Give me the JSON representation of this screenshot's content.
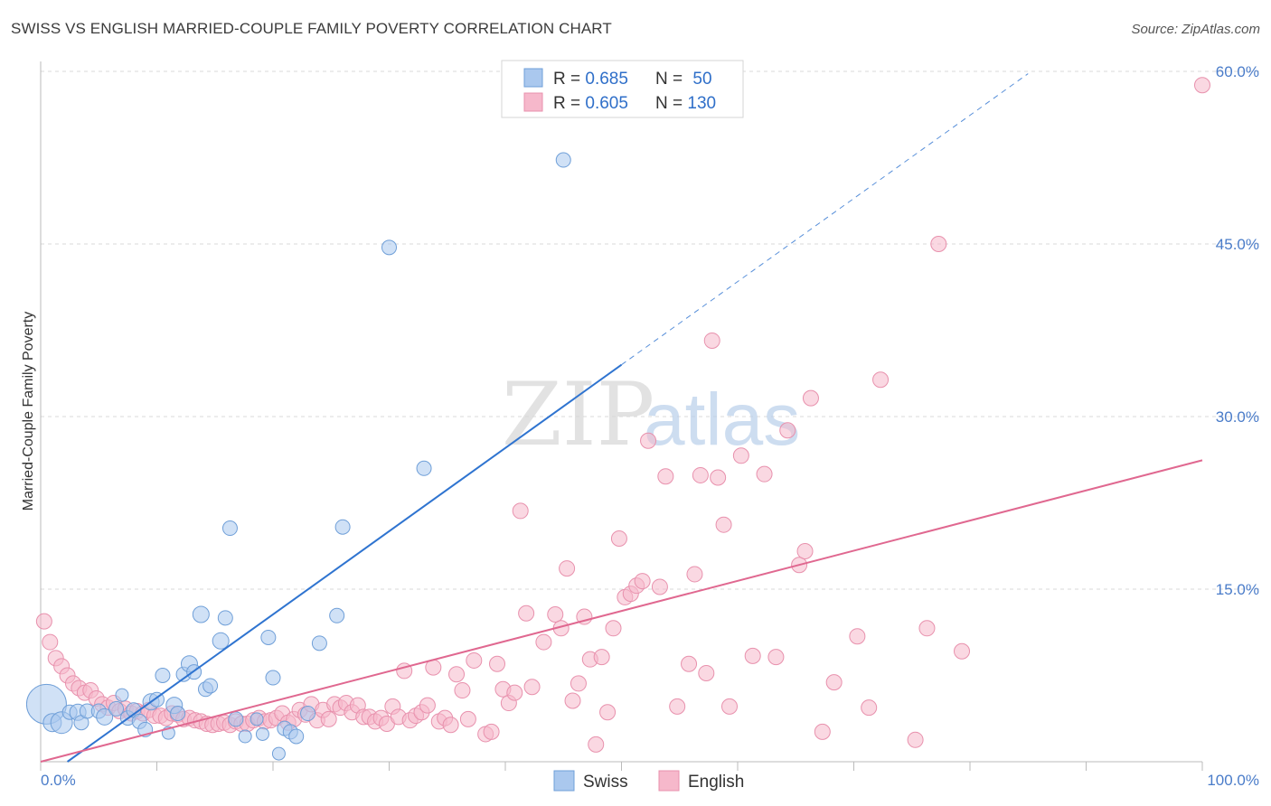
{
  "title": "SWISS VS ENGLISH MARRIED-COUPLE FAMILY POVERTY CORRELATION CHART",
  "source": "Source: ZipAtlas.com",
  "watermark": {
    "zip": "ZIP",
    "atlas": "atlas"
  },
  "colors": {
    "swiss_fill": "#aac8ee",
    "swiss_stroke": "#6f9fd8",
    "swiss_line": "#2f74d0",
    "english_fill": "#f6b8cb",
    "english_stroke": "#e891ad",
    "english_line": "#e06890",
    "tick_text": "#4a7cc9",
    "grid": "#d8d8d8"
  },
  "legend": {
    "rows": [
      {
        "r_label": "R = ",
        "r_value": "0.685",
        "n_label": "N = ",
        "n_value": "50"
      },
      {
        "r_label": "R = ",
        "r_value": "0.605",
        "n_label": "N = ",
        "n_value": "130"
      }
    ],
    "bottom": [
      "Swiss",
      "English"
    ]
  },
  "chart_data": {
    "type": "scatter",
    "title": "SWISS VS ENGLISH MARRIED-COUPLE FAMILY POVERTY CORRELATION CHART",
    "xlabel": "",
    "ylabel": "Married-Couple Family Poverty",
    "xlim": [
      0,
      100
    ],
    "ylim": [
      0,
      60
    ],
    "x_tick_labels": [
      "0.0%",
      "100.0%"
    ],
    "y_ticks": [
      15,
      30,
      45,
      60
    ],
    "y_tick_labels": [
      "15.0%",
      "30.0%",
      "45.0%",
      "60.0%"
    ],
    "grid": true,
    "legend_position": "top-center",
    "series": [
      {
        "name": "Swiss",
        "R": 0.685,
        "N": 50,
        "trend": {
          "x": [
            2.3,
            50.0
          ],
          "y": [
            0.0,
            34.5
          ],
          "dashed_to": {
            "x": 85.0,
            "y": 59.8
          }
        },
        "points": [
          [
            0.5,
            5.0,
            22
          ],
          [
            1.0,
            3.4,
            10
          ],
          [
            1.8,
            3.4,
            12
          ],
          [
            2.5,
            4.3,
            8
          ],
          [
            3.2,
            4.3,
            9
          ],
          [
            3.5,
            3.4,
            8
          ],
          [
            4.0,
            4.4,
            8
          ],
          [
            5.0,
            4.4,
            8
          ],
          [
            5.5,
            3.9,
            9
          ],
          [
            6.5,
            4.6,
            8
          ],
          [
            7.0,
            5.8,
            7
          ],
          [
            7.5,
            3.8,
            8
          ],
          [
            8.0,
            4.5,
            8
          ],
          [
            8.5,
            3.5,
            8
          ],
          [
            9.0,
            2.8,
            8
          ],
          [
            9.5,
            5.2,
            9
          ],
          [
            10.0,
            5.4,
            8
          ],
          [
            10.5,
            7.5,
            8
          ],
          [
            11.0,
            2.5,
            7
          ],
          [
            11.5,
            4.9,
            9
          ],
          [
            11.8,
            4.2,
            8
          ],
          [
            12.3,
            7.6,
            8
          ],
          [
            12.8,
            8.5,
            9
          ],
          [
            13.2,
            7.8,
            8
          ],
          [
            13.8,
            12.8,
            9
          ],
          [
            14.2,
            6.3,
            8
          ],
          [
            14.6,
            6.6,
            8
          ],
          [
            15.5,
            10.5,
            9
          ],
          [
            15.9,
            12.5,
            8
          ],
          [
            16.3,
            20.3,
            8
          ],
          [
            16.8,
            3.7,
            8
          ],
          [
            17.6,
            2.2,
            7
          ],
          [
            18.6,
            3.7,
            7
          ],
          [
            19.1,
            2.4,
            7
          ],
          [
            19.6,
            10.8,
            8
          ],
          [
            20.0,
            7.3,
            8
          ],
          [
            20.5,
            0.7,
            7
          ],
          [
            21.0,
            2.9,
            8
          ],
          [
            21.5,
            2.6,
            8
          ],
          [
            22.0,
            2.2,
            8
          ],
          [
            23.0,
            4.2,
            8
          ],
          [
            24.0,
            10.3,
            8
          ],
          [
            25.5,
            12.7,
            8
          ],
          [
            26.0,
            20.4,
            8
          ],
          [
            30.0,
            44.7,
            8
          ],
          [
            33.0,
            25.5,
            8
          ],
          [
            45.0,
            52.3,
            8
          ]
        ]
      },
      {
        "name": "English",
        "R": 0.605,
        "N": 130,
        "trend": {
          "x": [
            0.0,
            100.0
          ],
          "y": [
            0.0,
            26.2
          ]
        },
        "points": [
          [
            0.3,
            12.2
          ],
          [
            0.8,
            10.4
          ],
          [
            1.3,
            9.0
          ],
          [
            1.8,
            8.3
          ],
          [
            2.3,
            7.5
          ],
          [
            2.8,
            6.8
          ],
          [
            3.3,
            6.4
          ],
          [
            3.8,
            6.0
          ],
          [
            4.3,
            6.2
          ],
          [
            4.8,
            5.5
          ],
          [
            5.3,
            5.0
          ],
          [
            5.8,
            4.7
          ],
          [
            6.3,
            5.1
          ],
          [
            6.8,
            4.4
          ],
          [
            7.3,
            4.6
          ],
          [
            7.8,
            4.2
          ],
          [
            8.3,
            4.4
          ],
          [
            8.8,
            4.2
          ],
          [
            9.3,
            4.5
          ],
          [
            9.8,
            4.0
          ],
          [
            10.3,
            4.0
          ],
          [
            10.8,
            3.8
          ],
          [
            11.3,
            4.2
          ],
          [
            11.8,
            4.1
          ],
          [
            12.3,
            3.7
          ],
          [
            12.8,
            3.8
          ],
          [
            13.3,
            3.6
          ],
          [
            13.8,
            3.5
          ],
          [
            14.3,
            3.3
          ],
          [
            14.8,
            3.2
          ],
          [
            15.3,
            3.3
          ],
          [
            15.8,
            3.4
          ],
          [
            16.3,
            3.2
          ],
          [
            16.8,
            3.5
          ],
          [
            17.3,
            3.3
          ],
          [
            17.8,
            3.3
          ],
          [
            18.3,
            3.6
          ],
          [
            18.8,
            3.8
          ],
          [
            19.3,
            3.5
          ],
          [
            19.8,
            3.6
          ],
          [
            20.3,
            3.8
          ],
          [
            20.8,
            4.2
          ],
          [
            21.3,
            3.4
          ],
          [
            21.8,
            3.7
          ],
          [
            22.3,
            4.5
          ],
          [
            22.8,
            4.1
          ],
          [
            23.3,
            5.0
          ],
          [
            23.8,
            3.6
          ],
          [
            24.3,
            4.5
          ],
          [
            24.8,
            3.7
          ],
          [
            25.3,
            5.0
          ],
          [
            25.8,
            4.7
          ],
          [
            26.3,
            5.1
          ],
          [
            26.8,
            4.3
          ],
          [
            27.3,
            4.9
          ],
          [
            27.8,
            3.9
          ],
          [
            28.3,
            3.9
          ],
          [
            28.8,
            3.5
          ],
          [
            29.3,
            3.8
          ],
          [
            29.8,
            3.3
          ],
          [
            30.3,
            4.8
          ],
          [
            30.8,
            3.9
          ],
          [
            31.3,
            7.9
          ],
          [
            31.8,
            3.6
          ],
          [
            32.3,
            4.0
          ],
          [
            32.8,
            4.3
          ],
          [
            33.3,
            4.9
          ],
          [
            33.8,
            8.2
          ],
          [
            34.3,
            3.5
          ],
          [
            34.8,
            3.8
          ],
          [
            35.3,
            3.2
          ],
          [
            35.8,
            7.6
          ],
          [
            36.3,
            6.2
          ],
          [
            36.8,
            3.7
          ],
          [
            37.3,
            8.8
          ],
          [
            38.3,
            2.4
          ],
          [
            38.8,
            2.6
          ],
          [
            39.3,
            8.5
          ],
          [
            39.8,
            6.3
          ],
          [
            40.3,
            5.1
          ],
          [
            40.8,
            6.0
          ],
          [
            41.3,
            21.8
          ],
          [
            41.8,
            12.9
          ],
          [
            42.3,
            6.5
          ],
          [
            43.3,
            10.4
          ],
          [
            44.3,
            12.8
          ],
          [
            44.8,
            11.6
          ],
          [
            45.3,
            16.8
          ],
          [
            45.8,
            5.3
          ],
          [
            46.3,
            6.8
          ],
          [
            46.8,
            12.6
          ],
          [
            47.3,
            8.9
          ],
          [
            47.8,
            1.5
          ],
          [
            48.3,
            9.1
          ],
          [
            48.8,
            4.3
          ],
          [
            49.3,
            11.6
          ],
          [
            49.8,
            19.4
          ],
          [
            50.3,
            14.3
          ],
          [
            50.8,
            14.6
          ],
          [
            51.3,
            15.3
          ],
          [
            51.8,
            15.7
          ],
          [
            52.3,
            27.9
          ],
          [
            53.3,
            15.2
          ],
          [
            53.8,
            24.8
          ],
          [
            54.8,
            4.8
          ],
          [
            55.8,
            8.5
          ],
          [
            56.3,
            16.3
          ],
          [
            56.8,
            24.9
          ],
          [
            57.3,
            7.7
          ],
          [
            57.8,
            36.6
          ],
          [
            58.3,
            24.7
          ],
          [
            58.8,
            20.6
          ],
          [
            59.3,
            4.8
          ],
          [
            60.3,
            26.6
          ],
          [
            61.3,
            9.2
          ],
          [
            62.3,
            25.0
          ],
          [
            63.3,
            9.1
          ],
          [
            64.3,
            28.8
          ],
          [
            65.3,
            17.1
          ],
          [
            65.8,
            18.3
          ],
          [
            66.3,
            31.6
          ],
          [
            67.3,
            2.6
          ],
          [
            68.3,
            6.9
          ],
          [
            70.3,
            10.9
          ],
          [
            71.3,
            4.7
          ],
          [
            72.3,
            33.2
          ],
          [
            75.3,
            1.9
          ],
          [
            76.3,
            11.6
          ],
          [
            77.3,
            45.0
          ],
          [
            79.3,
            9.6
          ],
          [
            100.0,
            58.8
          ]
        ]
      }
    ]
  }
}
